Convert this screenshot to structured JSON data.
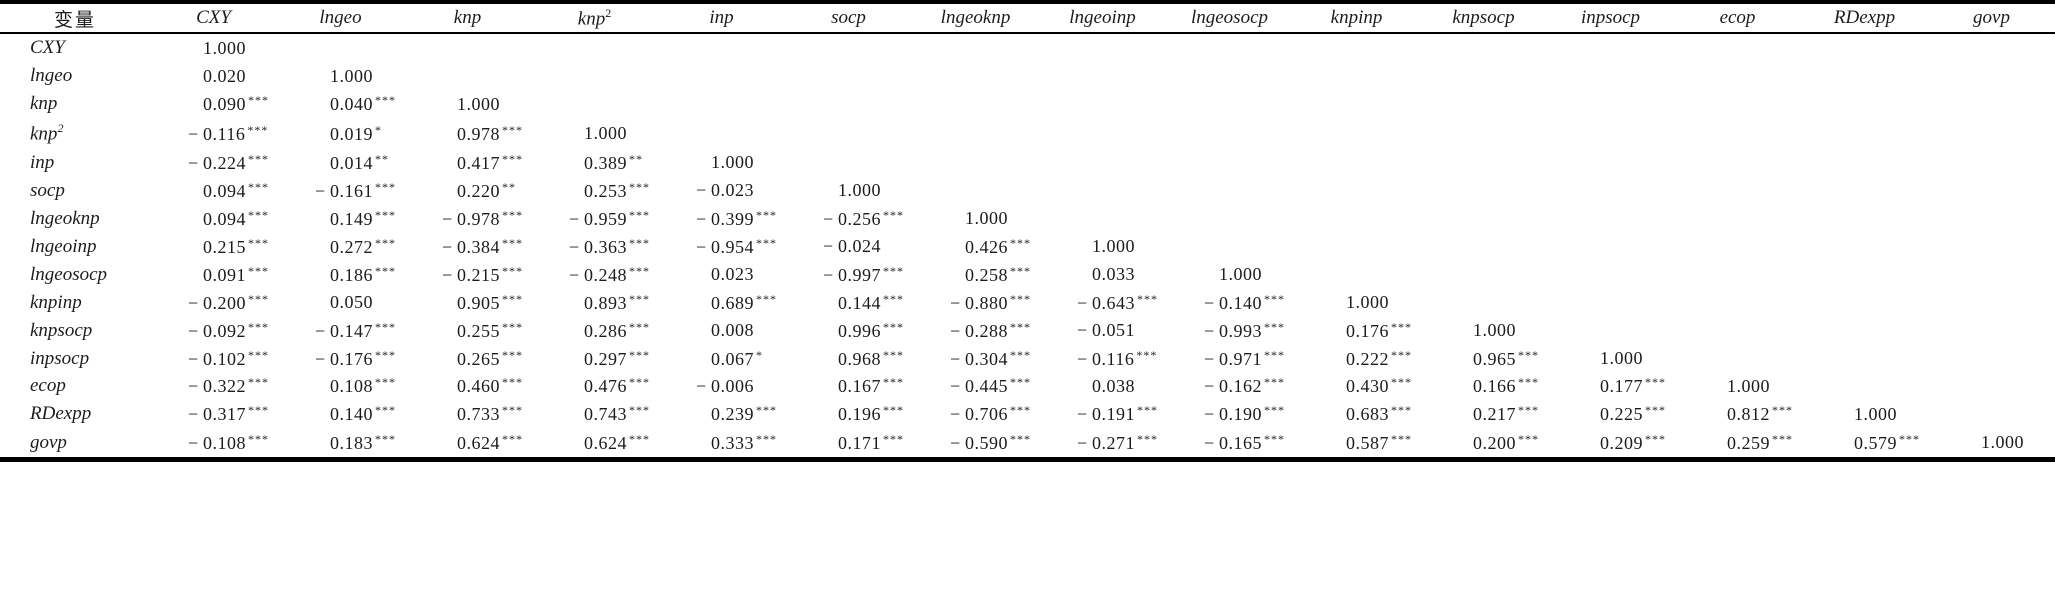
{
  "table": {
    "corner_header": "变量",
    "significance_legend": {
      "three_stars": "***",
      "two_stars": "**",
      "one_star": "*"
    },
    "columns": [
      {
        "base": "CXY",
        "sup": ""
      },
      {
        "base": "lngeo",
        "sup": ""
      },
      {
        "base": "knp",
        "sup": ""
      },
      {
        "base": "knp",
        "sup": "2"
      },
      {
        "base": "inp",
        "sup": ""
      },
      {
        "base": "socp",
        "sup": ""
      },
      {
        "base": "lngeoknp",
        "sup": ""
      },
      {
        "base": "lngeoinp",
        "sup": ""
      },
      {
        "base": "lngeosocp",
        "sup": ""
      },
      {
        "base": "knpinp",
        "sup": ""
      },
      {
        "base": "knpsocp",
        "sup": ""
      },
      {
        "base": "inpsocp",
        "sup": ""
      },
      {
        "base": "ecop",
        "sup": ""
      },
      {
        "base": "RDexpp",
        "sup": ""
      },
      {
        "base": "govp",
        "sup": ""
      }
    ],
    "rows": [
      {
        "base": "CXY",
        "sup": "",
        "cells": [
          [
            "1.000",
            ""
          ]
        ]
      },
      {
        "base": "lngeo",
        "sup": "",
        "cells": [
          [
            "0.020",
            ""
          ],
          [
            "1.000",
            ""
          ]
        ]
      },
      {
        "base": "knp",
        "sup": "",
        "cells": [
          [
            "0.090",
            "***"
          ],
          [
            "0.040",
            "***"
          ],
          [
            "1.000",
            ""
          ]
        ]
      },
      {
        "base": "knp",
        "sup": "2",
        "cells": [
          [
            "−0.116",
            "***"
          ],
          [
            "0.019",
            "*"
          ],
          [
            "0.978",
            "***"
          ],
          [
            "1.000",
            ""
          ]
        ]
      },
      {
        "base": "inp",
        "sup": "",
        "cells": [
          [
            "−0.224",
            "***"
          ],
          [
            "0.014",
            "**"
          ],
          [
            "0.417",
            "***"
          ],
          [
            "0.389",
            "**"
          ],
          [
            "1.000",
            ""
          ]
        ]
      },
      {
        "base": "socp",
        "sup": "",
        "cells": [
          [
            "0.094",
            "***"
          ],
          [
            "−0.161",
            "***"
          ],
          [
            "0.220",
            "**"
          ],
          [
            "0.253",
            "***"
          ],
          [
            "−0.023",
            ""
          ],
          [
            "1.000",
            ""
          ]
        ]
      },
      {
        "base": "lngeoknp",
        "sup": "",
        "cells": [
          [
            "0.094",
            "***"
          ],
          [
            "0.149",
            "***"
          ],
          [
            "−0.978",
            "***"
          ],
          [
            "−0.959",
            "***"
          ],
          [
            "−0.399",
            "***"
          ],
          [
            "−0.256",
            "***"
          ],
          [
            "1.000",
            ""
          ]
        ]
      },
      {
        "base": "lngeoinp",
        "sup": "",
        "cells": [
          [
            "0.215",
            "***"
          ],
          [
            "0.272",
            "***"
          ],
          [
            "−0.384",
            "***"
          ],
          [
            "−0.363",
            "***"
          ],
          [
            "−0.954",
            "***"
          ],
          [
            "−0.024",
            ""
          ],
          [
            "0.426",
            "***"
          ],
          [
            "1.000",
            ""
          ]
        ]
      },
      {
        "base": "lngeosocp",
        "sup": "",
        "cells": [
          [
            "0.091",
            "***"
          ],
          [
            "0.186",
            "***"
          ],
          [
            "−0.215",
            "***"
          ],
          [
            "−0.248",
            "***"
          ],
          [
            "0.023",
            ""
          ],
          [
            "−0.997",
            "***"
          ],
          [
            "0.258",
            "***"
          ],
          [
            "0.033",
            ""
          ],
          [
            "1.000",
            ""
          ]
        ]
      },
      {
        "base": "knpinp",
        "sup": "",
        "cells": [
          [
            "−0.200",
            "***"
          ],
          [
            "0.050",
            ""
          ],
          [
            "0.905",
            "***"
          ],
          [
            "0.893",
            "***"
          ],
          [
            "0.689",
            "***"
          ],
          [
            "0.144",
            "***"
          ],
          [
            "−0.880",
            "***"
          ],
          [
            "−0.643",
            "***"
          ],
          [
            "−0.140",
            "***"
          ],
          [
            "1.000",
            ""
          ]
        ]
      },
      {
        "base": "knpsocp",
        "sup": "",
        "cells": [
          [
            "−0.092",
            "***"
          ],
          [
            "−0.147",
            "***"
          ],
          [
            "0.255",
            "***"
          ],
          [
            "0.286",
            "***"
          ],
          [
            "0.008",
            ""
          ],
          [
            "0.996",
            "***"
          ],
          [
            "−0.288",
            "***"
          ],
          [
            "−0.051",
            ""
          ],
          [
            "−0.993",
            "***"
          ],
          [
            "0.176",
            "***"
          ],
          [
            "1.000",
            ""
          ]
        ]
      },
      {
        "base": "inpsocp",
        "sup": "",
        "cells": [
          [
            "−0.102",
            "***"
          ],
          [
            "−0.176",
            "***"
          ],
          [
            "0.265",
            "***"
          ],
          [
            "0.297",
            "***"
          ],
          [
            "0.067",
            "*"
          ],
          [
            "0.968",
            "***"
          ],
          [
            "−0.304",
            "***"
          ],
          [
            "−0.116",
            "***"
          ],
          [
            "−0.971",
            "***"
          ],
          [
            "0.222",
            "***"
          ],
          [
            "0.965",
            "***"
          ],
          [
            "1.000",
            ""
          ]
        ]
      },
      {
        "base": "ecop",
        "sup": "",
        "cells": [
          [
            "−0.322",
            "***"
          ],
          [
            "0.108",
            "***"
          ],
          [
            "0.460",
            "***"
          ],
          [
            "0.476",
            "***"
          ],
          [
            "−0.006",
            ""
          ],
          [
            "0.167",
            "***"
          ],
          [
            "−0.445",
            "***"
          ],
          [
            "0.038",
            ""
          ],
          [
            "−0.162",
            "***"
          ],
          [
            "0.430",
            "***"
          ],
          [
            "0.166",
            "***"
          ],
          [
            "0.177",
            "***"
          ],
          [
            "1.000",
            ""
          ]
        ]
      },
      {
        "base": "RDexpp",
        "sup": "",
        "cells": [
          [
            "−0.317",
            "***"
          ],
          [
            "0.140",
            "***"
          ],
          [
            "0.733",
            "***"
          ],
          [
            "0.743",
            "***"
          ],
          [
            "0.239",
            "***"
          ],
          [
            "0.196",
            "***"
          ],
          [
            "−0.706",
            "***"
          ],
          [
            "−0.191",
            "***"
          ],
          [
            "−0.190",
            "***"
          ],
          [
            "0.683",
            "***"
          ],
          [
            "0.217",
            "***"
          ],
          [
            "0.225",
            "***"
          ],
          [
            "0.812",
            "***"
          ],
          [
            "1.000",
            ""
          ]
        ]
      },
      {
        "base": "govp",
        "sup": "",
        "cells": [
          [
            "−0.108",
            "***"
          ],
          [
            "0.183",
            "***"
          ],
          [
            "0.624",
            "***"
          ],
          [
            "0.624",
            "***"
          ],
          [
            "0.333",
            "***"
          ],
          [
            "0.171",
            "***"
          ],
          [
            "−0.590",
            "***"
          ],
          [
            "−0.271",
            "***"
          ],
          [
            "−0.165",
            "***"
          ],
          [
            "0.587",
            "***"
          ],
          [
            "0.200",
            "***"
          ],
          [
            "0.209",
            "***"
          ],
          [
            "0.259",
            "***"
          ],
          [
            "0.579",
            "***"
          ],
          [
            "1.000",
            ""
          ]
        ]
      }
    ]
  }
}
